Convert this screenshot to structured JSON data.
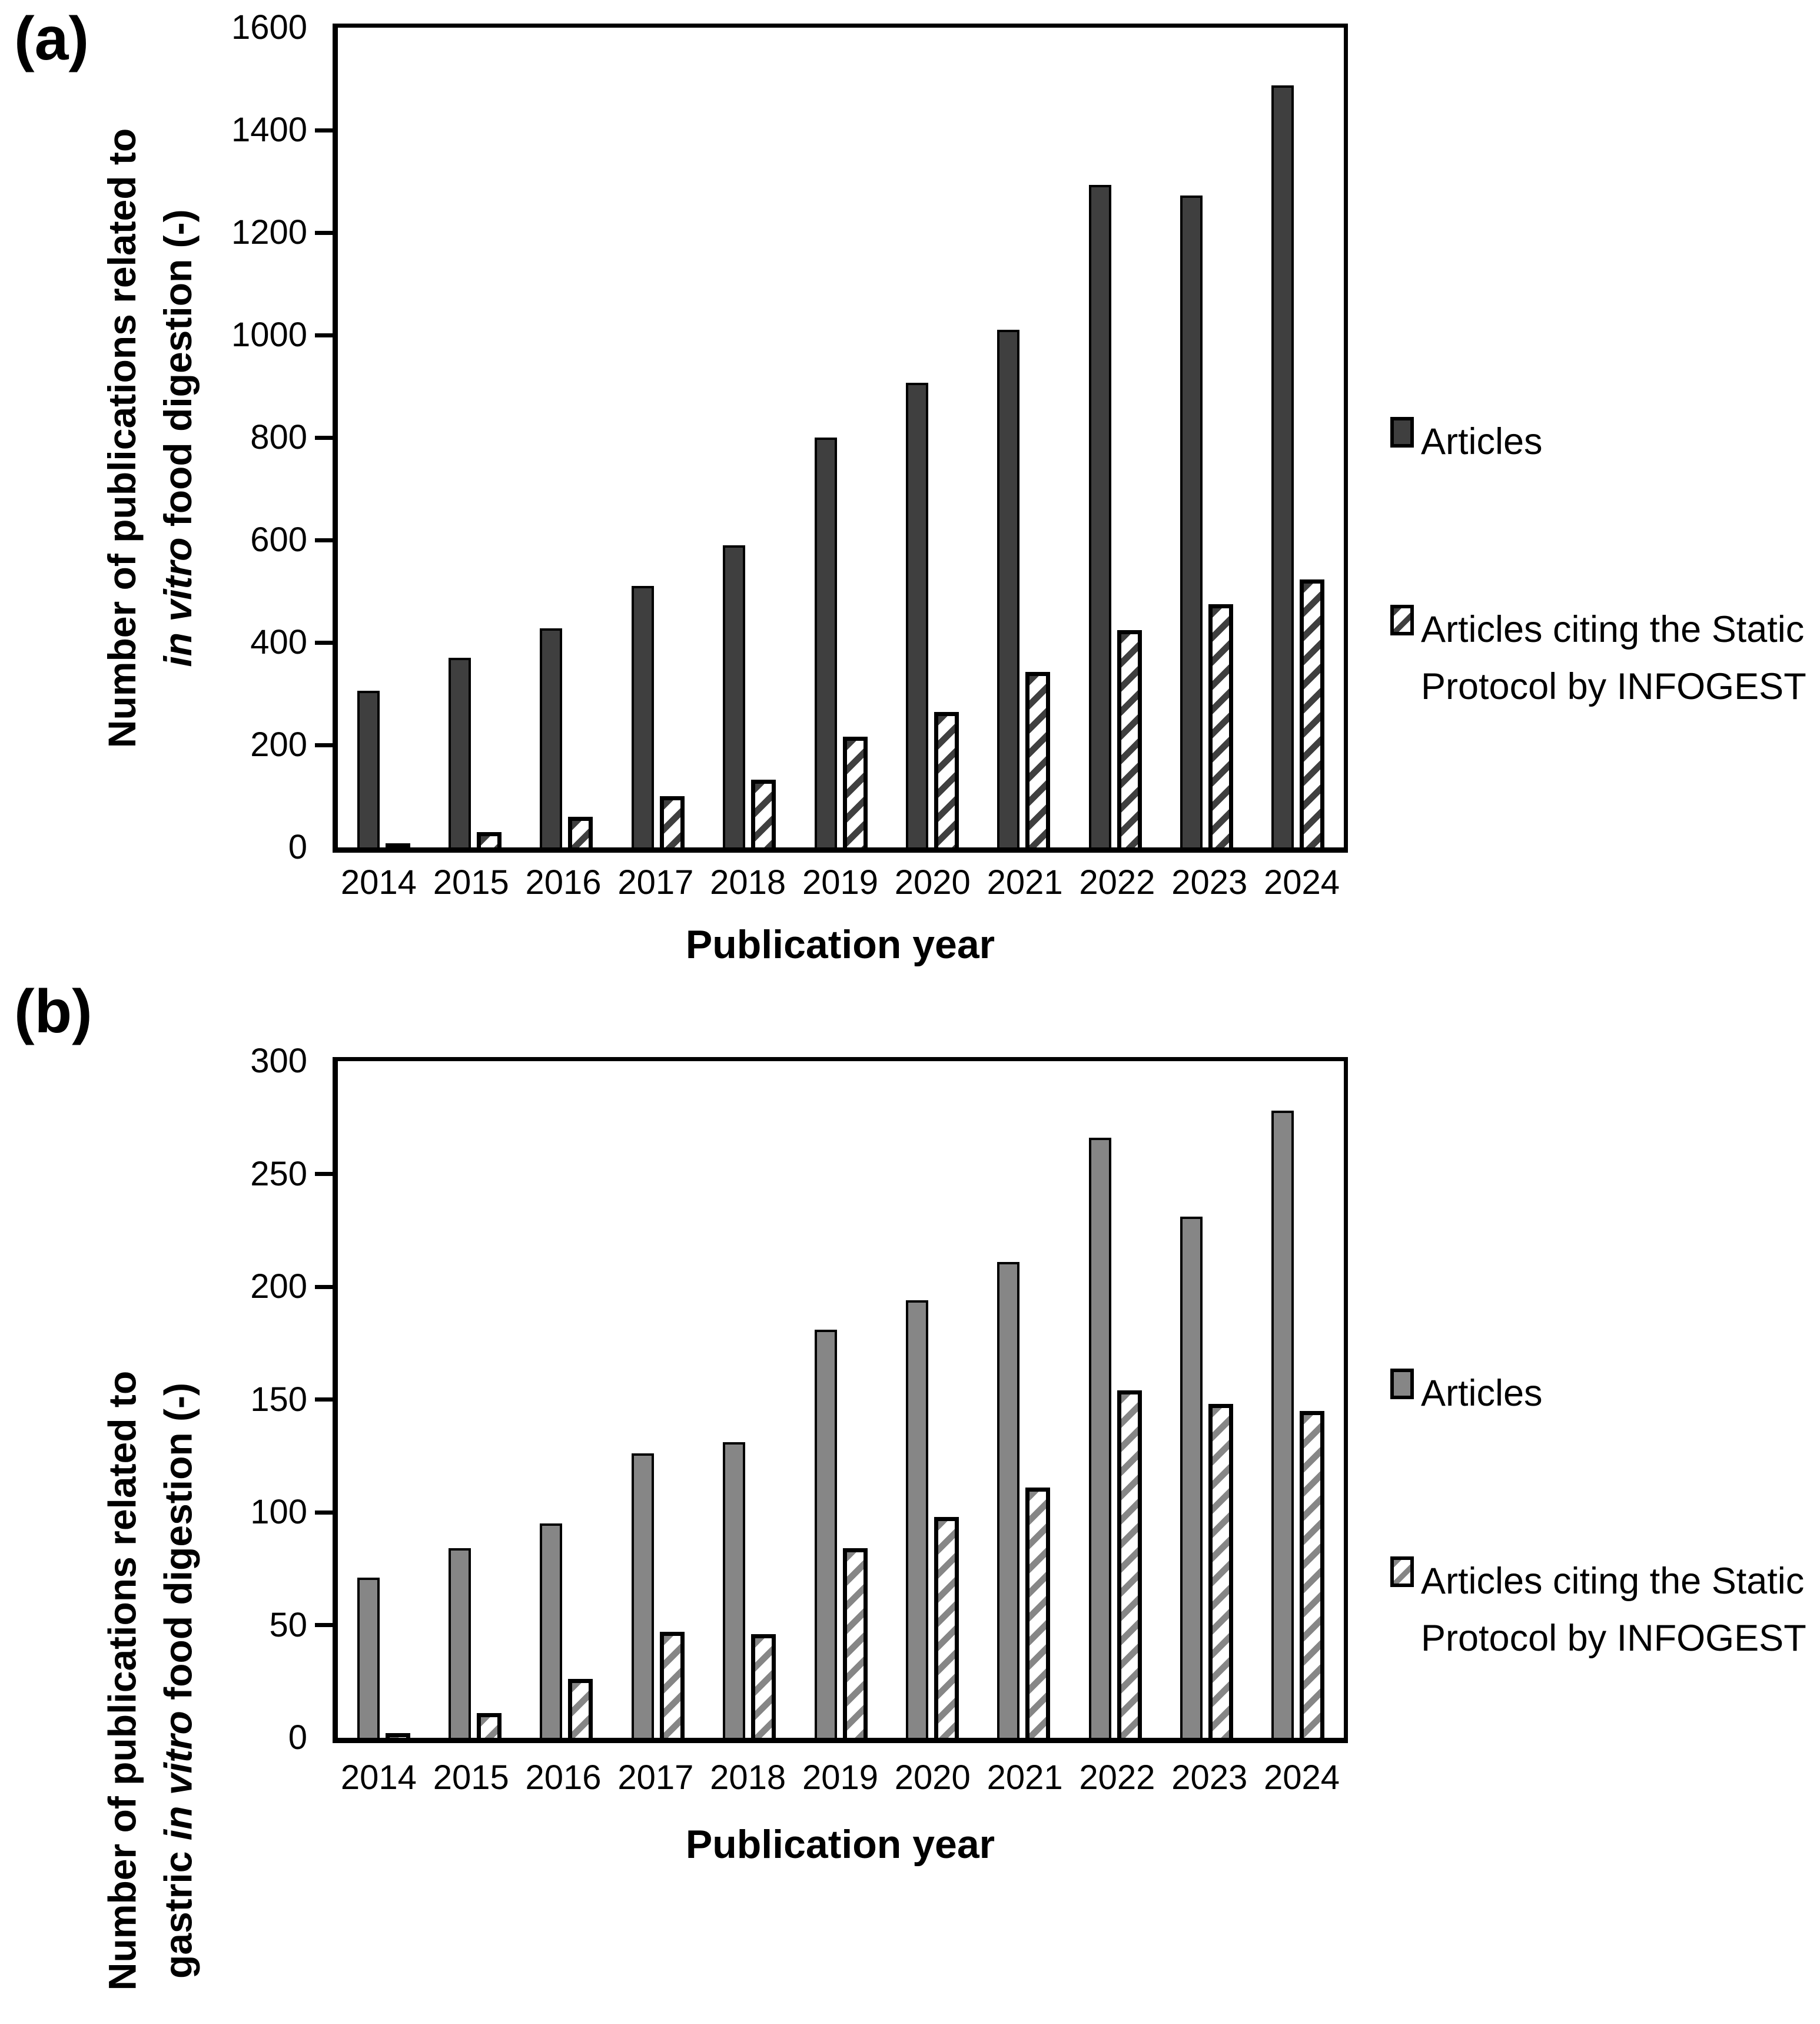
{
  "chart_data": [
    {
      "type": "bar",
      "panel_label": "(a)",
      "xlabel": "Publication year",
      "ylabel_line1": "Number of publications related to",
      "ylabel_line2_pre": "",
      "ylabel_italic": "in vitro",
      "ylabel_line2_post": " food digestion (-)",
      "categories": [
        "2014",
        "2015",
        "2016",
        "2017",
        "2018",
        "2019",
        "2020",
        "2021",
        "2022",
        "2023",
        "2024"
      ],
      "series": [
        {
          "name": "Articles",
          "pattern": "solid",
          "color": "#3f3f3f",
          "values": [
            306,
            370,
            428,
            510,
            590,
            800,
            907,
            1010,
            1293,
            1272,
            1487
          ]
        },
        {
          "name": "Articles citing the Static Protocol by INFOGEST",
          "pattern": "hatch",
          "color": "#3f3f3f",
          "values": [
            5,
            30,
            60,
            100,
            132,
            216,
            264,
            342,
            424,
            475,
            523
          ]
        }
      ],
      "ylim": [
        0,
        1600
      ],
      "ytick_step": 200,
      "grid": false,
      "legend": {
        "position": "right",
        "item1": "Articles",
        "item2_line1": "Articles citing the Static",
        "item2_line2": "Protocol by INFOGEST"
      }
    },
    {
      "type": "bar",
      "panel_label": "(b)",
      "xlabel": "Publication year",
      "ylabel_line1": "Number of publications related to",
      "ylabel_line2_pre": "gastric ",
      "ylabel_italic": "in vitro",
      "ylabel_line2_post": " food digestion (-)",
      "categories": [
        "2014",
        "2015",
        "2016",
        "2017",
        "2018",
        "2019",
        "2020",
        "2021",
        "2022",
        "2023",
        "2024"
      ],
      "series": [
        {
          "name": "Articles",
          "pattern": "solid",
          "color": "#868686",
          "values": [
            71,
            84,
            95,
            126,
            131,
            181,
            194,
            211,
            266,
            231,
            278
          ]
        },
        {
          "name": "Articles citing the Static Protocol by INFOGEST",
          "pattern": "hatch",
          "color": "#868686",
          "values": [
            2,
            11,
            26,
            47,
            46,
            84,
            98,
            111,
            154,
            148,
            145
          ]
        }
      ],
      "ylim": [
        0,
        300
      ],
      "ytick_step": 50,
      "grid": false,
      "legend": {
        "position": "right",
        "item1": "Articles",
        "item2_line1": "Articles citing the Static",
        "item2_line2": "Protocol by INFOGEST"
      }
    }
  ]
}
